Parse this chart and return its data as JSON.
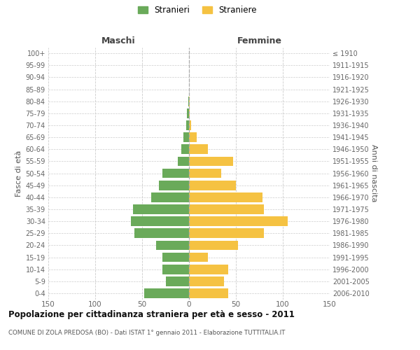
{
  "age_groups": [
    "0-4",
    "5-9",
    "10-14",
    "15-19",
    "20-24",
    "25-29",
    "30-34",
    "35-39",
    "40-44",
    "45-49",
    "50-54",
    "55-59",
    "60-64",
    "65-69",
    "70-74",
    "75-79",
    "80-84",
    "85-89",
    "90-94",
    "95-99",
    "100+"
  ],
  "birth_years": [
    "2006-2010",
    "2001-2005",
    "1996-2000",
    "1991-1995",
    "1986-1990",
    "1981-1985",
    "1976-1980",
    "1971-1975",
    "1966-1970",
    "1961-1965",
    "1956-1960",
    "1951-1955",
    "1946-1950",
    "1941-1945",
    "1936-1940",
    "1931-1935",
    "1926-1930",
    "1921-1925",
    "1916-1920",
    "1911-1915",
    "≤ 1910"
  ],
  "males": [
    48,
    25,
    28,
    28,
    35,
    58,
    62,
    60,
    40,
    32,
    28,
    12,
    8,
    6,
    3,
    2,
    1,
    0,
    0,
    0,
    0
  ],
  "females": [
    42,
    37,
    42,
    20,
    52,
    80,
    105,
    80,
    78,
    50,
    34,
    47,
    20,
    8,
    2,
    1,
    1,
    0,
    0,
    0,
    0
  ],
  "male_color": "#6aaa5a",
  "female_color": "#f5c242",
  "background_color": "#ffffff",
  "grid_color": "#cccccc",
  "title": "Popolazione per cittadinanza straniera per età e sesso - 2011",
  "subtitle": "COMUNE DI ZOLA PREDOSA (BO) - Dati ISTAT 1° gennaio 2011 - Elaborazione TUTTITALIA.IT",
  "xlabel_left": "Maschi",
  "xlabel_right": "Femmine",
  "ylabel_left": "Fasce di età",
  "ylabel_right": "Anni di nascita",
  "legend_male": "Stranieri",
  "legend_female": "Straniere",
  "xlim": 150,
  "bar_height": 0.8
}
